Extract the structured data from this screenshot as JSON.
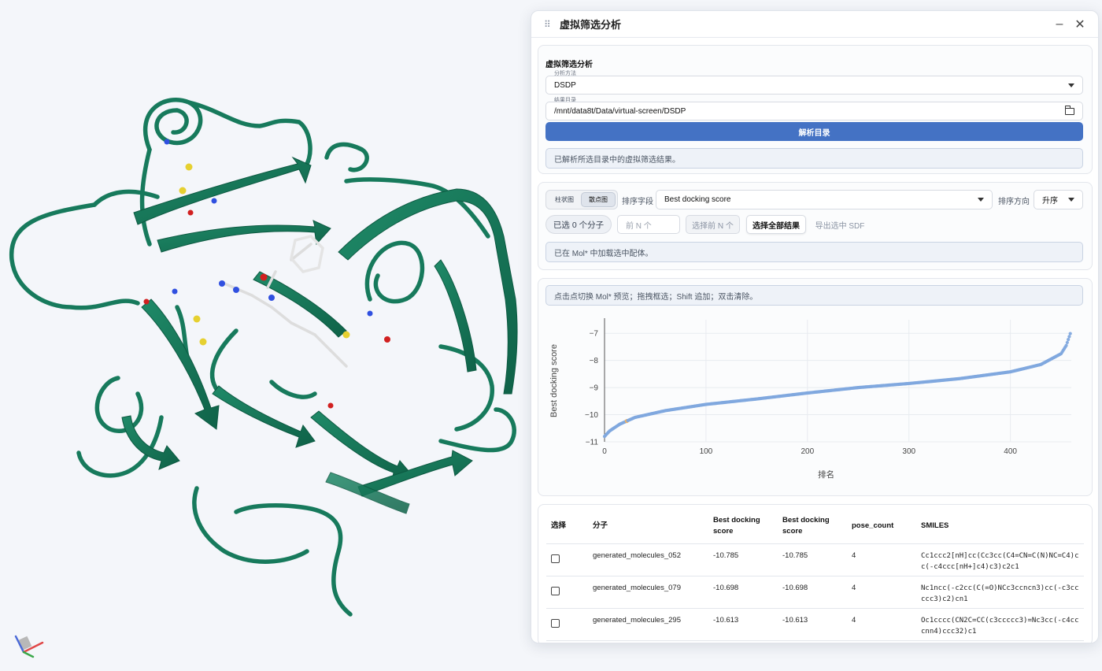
{
  "panel": {
    "title": "虚拟筛选分析",
    "minimize_icon": "minimize-icon",
    "close_icon": "close-icon"
  },
  "analysis": {
    "section_title": "虚拟筛选分析",
    "method_label": "分析方法",
    "method_value": "DSDP",
    "dir_label": "结果目录",
    "dir_value": "/mnt/data8t/Data/virtual-screen/DSDP",
    "parse_button": "解析目录",
    "status": "已解析所选目录中的虚拟筛选结果。"
  },
  "controls": {
    "bar_tab": "柱状图",
    "scatter_tab": "散点图",
    "sort_field_label": "排序字段",
    "sort_field_value": "Best docking score",
    "sort_dir_label": "排序方向",
    "sort_dir_value": "升序",
    "selected_count": "已选 0 个分子",
    "topn_placeholder": "前 N 个",
    "select_topn": "选择前 N 个",
    "select_all": "选择全部结果",
    "export_sdf": "导出选中 SDF",
    "loaded_status": "已在 Mol* 中加载选中配体。"
  },
  "chart_hint": "点击点切换 Mol* 预览；拖拽框选；Shift 追加；双击清除。",
  "chart_data": {
    "type": "scatter",
    "xlabel": "排名",
    "ylabel": "Best docking score",
    "xlim": [
      0,
      460
    ],
    "ylim": [
      -11,
      -6.5
    ],
    "xticks": [
      0,
      100,
      200,
      300,
      400
    ],
    "yticks": [
      -11,
      -10,
      -9,
      -8,
      -7
    ],
    "n_points": 460,
    "curve_anchors": [
      [
        0,
        -10.8
      ],
      [
        5,
        -10.6
      ],
      [
        15,
        -10.35
      ],
      [
        30,
        -10.1
      ],
      [
        60,
        -9.85
      ],
      [
        100,
        -9.62
      ],
      [
        150,
        -9.42
      ],
      [
        200,
        -9.2
      ],
      [
        250,
        -9.0
      ],
      [
        300,
        -8.85
      ],
      [
        350,
        -8.67
      ],
      [
        400,
        -8.42
      ],
      [
        430,
        -8.15
      ],
      [
        450,
        -7.75
      ],
      [
        455,
        -7.45
      ],
      [
        460,
        -6.9
      ]
    ],
    "highlight_rank": 22,
    "point_color": "#7fa8de",
    "highlight_color": "#f0b060"
  },
  "table": {
    "headers": [
      "选择",
      "分子",
      "Best docking score",
      "Best docking score",
      "pose_count",
      "SMILES"
    ],
    "rows": [
      {
        "name": "generated_molecules_052",
        "score1": "-10.785",
        "score2": "-10.785",
        "pose": "4",
        "smiles": "Cc1ccc2[nH]cc(Cc3cc(C4=CN=C(N)NC=C4)cc(-c4ccc[nH+]c4)c3)c2c1"
      },
      {
        "name": "generated_molecules_079",
        "score1": "-10.698",
        "score2": "-10.698",
        "pose": "4",
        "smiles": "Nc1ncc(-c2cc(C(=O)NCc3ccncn3)cc(-c3ccccc3)c2)cn1"
      },
      {
        "name": "generated_molecules_295",
        "score1": "-10.613",
        "score2": "-10.613",
        "pose": "4",
        "smiles": "Oc1cccc(CN2C=CC(c3ccccc3)=Nc3cc(-c4cccnn4)ccc32)c1"
      }
    ]
  },
  "colors": {
    "protein": "#177a5c",
    "accent": "#4472c4"
  }
}
